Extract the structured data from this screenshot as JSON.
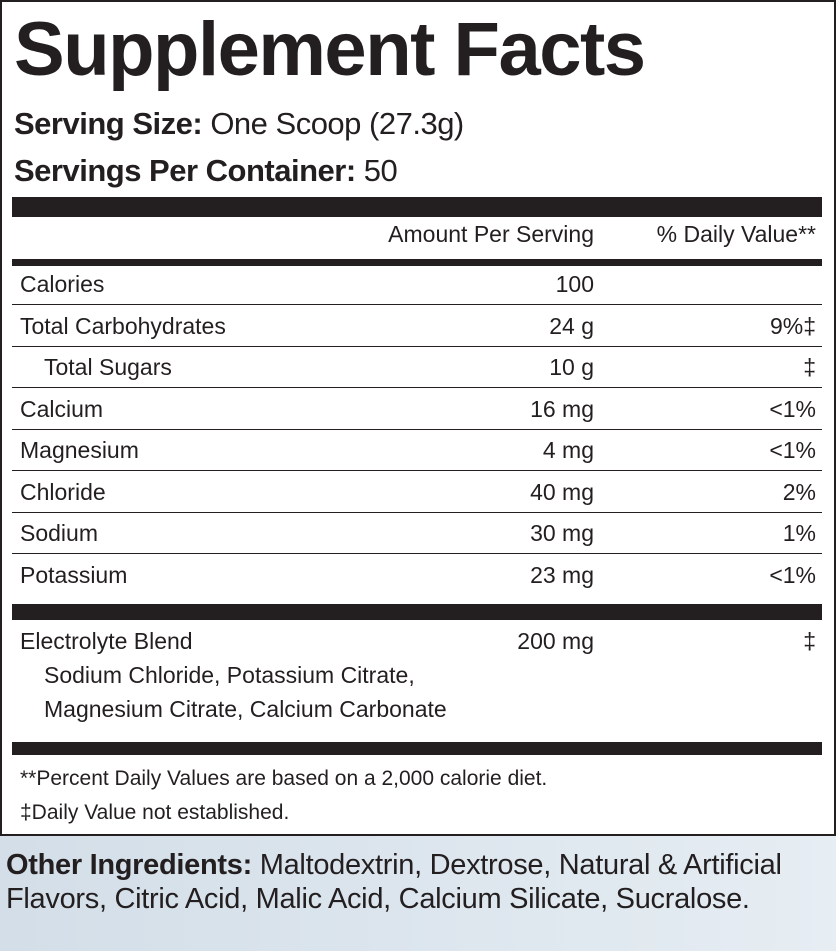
{
  "title": "Supplement Facts",
  "serving_size": {
    "label": "Serving Size:",
    "value": "One Scoop (27.3g)"
  },
  "servings_per_container": {
    "label": "Servings Per Container:",
    "value": "50"
  },
  "header": {
    "amount": "Amount Per Serving",
    "dv": "% Daily Value**"
  },
  "rows": [
    {
      "name": "Calories",
      "amount": "100",
      "dv": ""
    },
    {
      "name": "Total Carbohydrates",
      "amount": "24 g",
      "dv": "9%‡"
    },
    {
      "name": "Total Sugars",
      "amount": "10 g",
      "dv": "‡"
    },
    {
      "name": "Calcium",
      "amount": "16 mg",
      "dv": "<1%"
    },
    {
      "name": "Magnesium",
      "amount": "4 mg",
      "dv": "<1%"
    },
    {
      "name": "Chloride",
      "amount": "40 mg",
      "dv": "2%"
    },
    {
      "name": "Sodium",
      "amount": "30 mg",
      "dv": "1%"
    },
    {
      "name": "Potassium",
      "amount": "23 mg",
      "dv": "<1%"
    }
  ],
  "blend": {
    "name": "Electrolyte Blend",
    "amount": "200 mg",
    "dv": "‡",
    "line1": "Sodium Chloride, Potassium Citrate,",
    "line2": "Magnesium Citrate, Calcium Carbonate"
  },
  "footnotes": [
    "**Percent Daily Values are based on a 2,000 calorie diet.",
    "‡Daily Value not established."
  ],
  "other_ingredients": {
    "label": "Other Ingredients:",
    "value": "Maltodextrin, Dextrose, Natural & Artificial Flavors, Citric Acid, Malic Acid, Calcium Silicate, Sucralose."
  }
}
